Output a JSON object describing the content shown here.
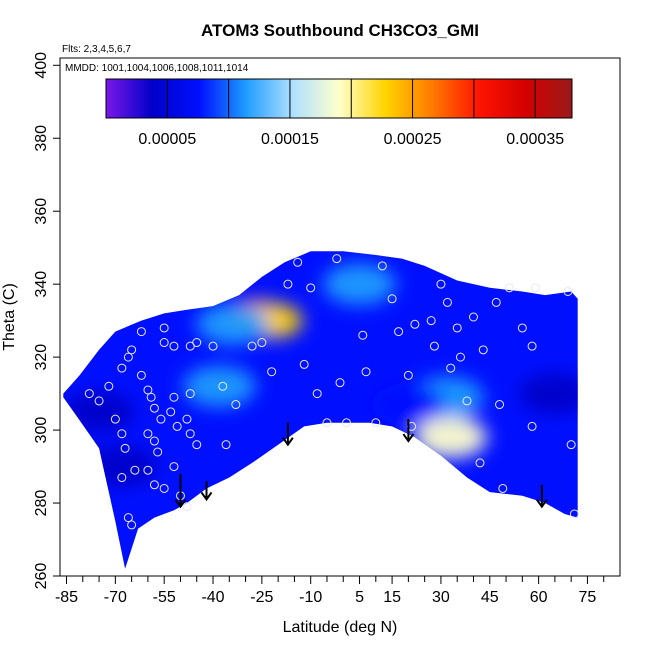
{
  "chart_data": {
    "type": "heatmap",
    "title": "ATOM3 Southbound CH3CO3_GMI",
    "flights_note": "Flts: 2,3,4,5,6,7",
    "mmdd_note": "MMDD: 1001,1004,1006,1008,1011,1014",
    "xlabel": "Latitude (deg N)",
    "ylabel": "Theta (C)",
    "xlim": [
      -87,
      85
    ],
    "ylim": [
      260,
      402
    ],
    "x_tick_labels": [
      "-85",
      "-70",
      "-55",
      "-40",
      "-25",
      "-10",
      "5",
      "15",
      "30",
      "45",
      "60",
      "75"
    ],
    "x_tick_values": [
      -85,
      -70,
      -55,
      -40,
      -25,
      -10,
      5,
      15,
      30,
      45,
      60,
      75
    ],
    "x_minor_tick_values": [
      -80,
      -75,
      -65,
      -60,
      -50,
      -45,
      -35,
      -30,
      -20,
      -15,
      -5,
      0,
      10,
      20,
      25,
      35,
      40,
      50,
      55,
      65,
      70,
      80
    ],
    "y_tick_labels": [
      "260",
      "280",
      "300",
      "320",
      "340",
      "360",
      "380",
      "400"
    ],
    "y_tick_values": [
      260,
      280,
      300,
      320,
      340,
      360,
      380,
      400
    ],
    "colorbar": {
      "range": [
        0.0,
        0.00038
      ],
      "boundaries": [
        0.0,
        5e-05,
        0.0001,
        0.00015,
        0.0002,
        0.00025,
        0.0003,
        0.00035,
        0.00038
      ],
      "tick_labels": [
        "0.00005",
        "0.00015",
        "0.00025",
        "0.00035"
      ],
      "tick_values": [
        5e-05,
        0.00015,
        0.00025,
        0.00035
      ],
      "colors": [
        "#7a18e8",
        "#0000c8",
        "#0010ff",
        "#1e9cff",
        "#aee0ff",
        "#ffffcc",
        "#ffd400",
        "#ff7a00",
        "#ff1400",
        "#d40000",
        "#9a1a1a"
      ]
    },
    "envelope_upper": [
      [
        -86,
        310
      ],
      [
        -81,
        315
      ],
      [
        -75,
        322
      ],
      [
        -70,
        327
      ],
      [
        -62,
        330
      ],
      [
        -55,
        332
      ],
      [
        -48,
        333
      ],
      [
        -40,
        334
      ],
      [
        -32,
        337
      ],
      [
        -25,
        342
      ],
      [
        -18,
        346
      ],
      [
        -10,
        349
      ],
      [
        0,
        349
      ],
      [
        10,
        348
      ],
      [
        18,
        347
      ],
      [
        25,
        345
      ],
      [
        35,
        341
      ],
      [
        45,
        339
      ],
      [
        55,
        338
      ],
      [
        62,
        337
      ],
      [
        70,
        338
      ],
      [
        72,
        336
      ]
    ],
    "envelope_lower": [
      [
        72,
        276
      ],
      [
        68,
        277
      ],
      [
        62,
        280
      ],
      [
        55,
        282
      ],
      [
        45,
        283
      ],
      [
        38,
        287
      ],
      [
        30,
        293
      ],
      [
        22,
        298
      ],
      [
        15,
        301
      ],
      [
        8,
        302
      ],
      [
        -5,
        302
      ],
      [
        -12,
        301
      ],
      [
        -20,
        296
      ],
      [
        -28,
        291
      ],
      [
        -35,
        287
      ],
      [
        -42,
        284
      ],
      [
        -48,
        280
      ],
      [
        -52,
        278
      ],
      [
        -58,
        276
      ],
      [
        -63,
        273
      ],
      [
        -67,
        262
      ],
      [
        -70,
        275
      ],
      [
        -75,
        295
      ],
      [
        -82,
        304
      ],
      [
        -86,
        309
      ]
    ],
    "field_blobs": [
      {
        "lat": -27,
        "theta": 331,
        "value": 0.00028
      },
      {
        "lat": -22,
        "theta": 330,
        "value": 0.00022
      },
      {
        "lat": -34,
        "theta": 329,
        "value": 0.00013
      },
      {
        "lat": -38,
        "theta": 312,
        "value": 0.00011
      },
      {
        "lat": 33,
        "theta": 298,
        "value": 0.00018
      },
      {
        "lat": 32,
        "theta": 309,
        "value": 0.00013
      },
      {
        "lat": 20,
        "theta": 307,
        "value": 9e-05
      },
      {
        "lat": 5,
        "theta": 340,
        "value": 0.0001
      },
      {
        "lat": -75,
        "theta": 305,
        "value": 2e-05
      },
      {
        "lat": -68,
        "theta": 290,
        "value": 2e-05
      },
      {
        "lat": 65,
        "theta": 310,
        "value": 2e-05
      }
    ],
    "background_value": 7e-05,
    "observation_points": [
      [
        -78,
        310
      ],
      [
        -75,
        308
      ],
      [
        -72,
        312
      ],
      [
        -70,
        303
      ],
      [
        -68,
        299
      ],
      [
        -67,
        295
      ],
      [
        -68,
        287
      ],
      [
        -66,
        276
      ],
      [
        -65,
        274
      ],
      [
        -64,
        289
      ],
      [
        -68,
        317
      ],
      [
        -66,
        320
      ],
      [
        -65,
        322
      ],
      [
        -62,
        315
      ],
      [
        -60,
        311
      ],
      [
        -59,
        309
      ],
      [
        -58,
        306
      ],
      [
        -56,
        303
      ],
      [
        -60,
        299
      ],
      [
        -58,
        297
      ],
      [
        -57,
        294
      ],
      [
        -60,
        289
      ],
      [
        -58,
        285
      ],
      [
        -55,
        284
      ],
      [
        -50,
        282
      ],
      [
        -48,
        279
      ],
      [
        -52,
        290
      ],
      [
        -53,
        305
      ],
      [
        -51,
        301
      ],
      [
        -52,
        309
      ],
      [
        -47,
        310
      ],
      [
        -48,
        303
      ],
      [
        -47,
        299
      ],
      [
        -45,
        296
      ],
      [
        -45,
        324
      ],
      [
        -47,
        323
      ],
      [
        -52,
        323
      ],
      [
        -55,
        324
      ],
      [
        -55,
        328
      ],
      [
        -62,
        327
      ],
      [
        -40,
        323
      ],
      [
        -37,
        312
      ],
      [
        -36,
        296
      ],
      [
        -28,
        323
      ],
      [
        -25,
        324
      ],
      [
        -22,
        316
      ],
      [
        -33,
        307
      ],
      [
        -14,
        346
      ],
      [
        -17,
        340
      ],
      [
        -10,
        339
      ],
      [
        -12,
        318
      ],
      [
        -8,
        310
      ],
      [
        -5,
        302
      ],
      [
        -2,
        347
      ],
      [
        -1,
        313
      ],
      [
        1,
        302
      ],
      [
        6,
        326
      ],
      [
        7,
        316
      ],
      [
        10,
        302
      ],
      [
        12,
        345
      ],
      [
        15,
        336
      ],
      [
        17,
        327
      ],
      [
        20,
        315
      ],
      [
        21,
        301
      ],
      [
        22,
        329
      ],
      [
        27,
        330
      ],
      [
        28,
        323
      ],
      [
        30,
        340
      ],
      [
        32,
        335
      ],
      [
        33,
        317
      ],
      [
        35,
        328
      ],
      [
        36,
        320
      ],
      [
        38,
        308
      ],
      [
        40,
        331
      ],
      [
        42,
        291
      ],
      [
        43,
        322
      ],
      [
        47,
        335
      ],
      [
        48,
        307
      ],
      [
        49,
        284
      ],
      [
        51,
        339
      ],
      [
        55,
        328
      ],
      [
        58,
        323
      ],
      [
        58,
        301
      ],
      [
        59,
        339
      ],
      [
        69,
        338
      ],
      [
        70,
        296
      ],
      [
        71,
        277
      ]
    ],
    "arrows": [
      {
        "lat": -50,
        "theta_top": 288,
        "theta_bottom": 279
      },
      {
        "lat": -42,
        "theta_top": 286,
        "theta_bottom": 281
      },
      {
        "lat": -17,
        "theta_top": 302,
        "theta_bottom": 296
      },
      {
        "lat": 20,
        "theta_top": 303,
        "theta_bottom": 297
      },
      {
        "lat": 61,
        "theta_top": 285,
        "theta_bottom": 279
      }
    ]
  }
}
